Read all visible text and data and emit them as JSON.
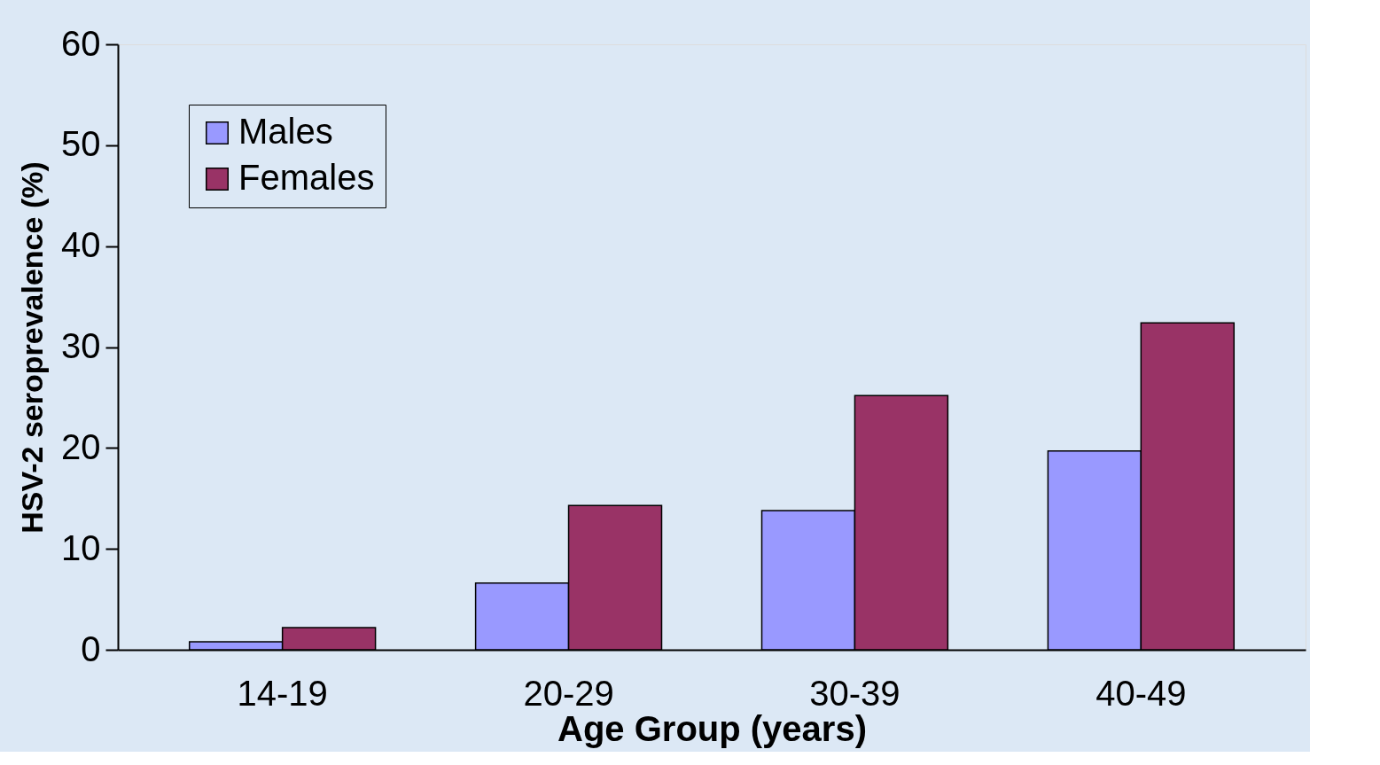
{
  "chart_data": {
    "type": "bar",
    "xlabel": "Age Group (years)",
    "ylabel": "HSV-2 seroprevalence (%)",
    "categories": [
      "14-19",
      "20-29",
      "30-39",
      "40-49"
    ],
    "series": [
      {
        "name": "Males",
        "color": "#9999ff",
        "values": [
          0.8,
          6.6,
          13.8,
          19.7
        ]
      },
      {
        "name": "Females",
        "color": "#993366",
        "values": [
          2.2,
          14.3,
          25.2,
          32.4
        ]
      }
    ],
    "ylim": [
      0,
      60
    ],
    "yticks": [
      0,
      10,
      20,
      30,
      40,
      50,
      60
    ],
    "grid": false,
    "legend": "top left"
  }
}
